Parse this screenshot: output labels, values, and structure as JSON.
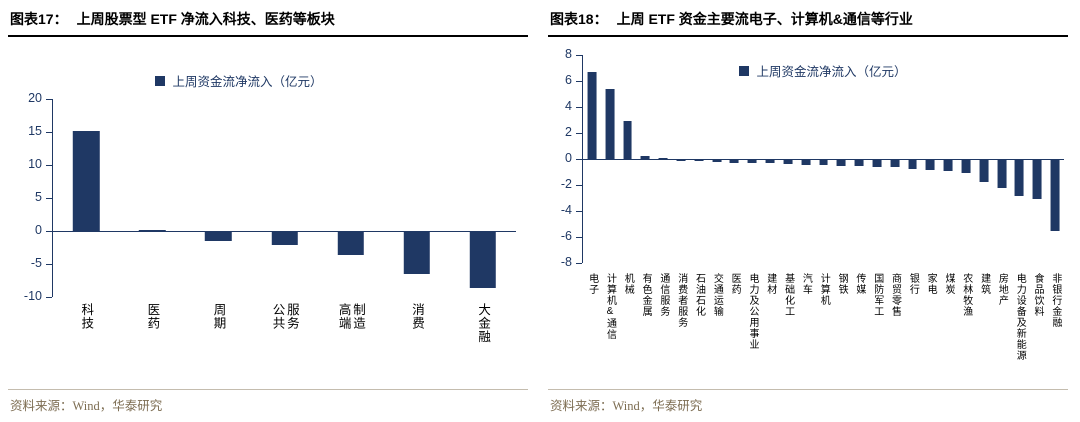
{
  "colors": {
    "navy": "#1f3864",
    "source_text": "#7d6d52",
    "rule": "#c4bcae",
    "title_text": "#000000"
  },
  "chart_data": [
    {
      "type": "bar",
      "fig_label": "图表17：",
      "title": "上周股票型 ETF 净流入科技、医药等板块",
      "legend": "上周资金流净流入（亿元）",
      "source": "资料来源：Wind，华泰研究",
      "ylim": [
        -10,
        20
      ],
      "ytick_step": 5,
      "grid": false,
      "legend_position": "top-center",
      "bar_color": "#1f3864",
      "categories": [
        "科技",
        "医药",
        "周期",
        "公共服务",
        "高端制造",
        "消费",
        "大金融"
      ],
      "values": [
        15.2,
        0.1,
        -1.5,
        -2.0,
        -3.5,
        -6.5,
        -8.5
      ]
    },
    {
      "type": "bar",
      "fig_label": "图表18：",
      "title": "上周 ETF 资金主要流电子、计算机&通信等行业",
      "legend": "上周资金流净流入（亿元）",
      "source": "资料来源：Wind，华泰研究",
      "ylim": [
        -8,
        8
      ],
      "ytick_step": 2,
      "grid": false,
      "legend_position": "top-center",
      "bar_color": "#1f3864",
      "categories": [
        "电子",
        "计算机&通信",
        "机械",
        "有色金属",
        "通信服务",
        "消费者服务",
        "石油石化",
        "交通运输",
        "医药",
        "电力及公用事业",
        "建材",
        "基础化工",
        "汽车",
        "计算机",
        "钢铁",
        "传媒",
        "国防军工",
        "商贸零售",
        "银行",
        "家电",
        "煤炭",
        "农林牧渔",
        "建筑",
        "房地产",
        "电力设备及新能源",
        "食品饮料",
        "非银行金融"
      ],
      "values": [
        6.7,
        5.4,
        2.9,
        0.2,
        0.1,
        -0.1,
        -0.15,
        -0.2,
        -0.25,
        -0.3,
        -0.3,
        -0.35,
        -0.4,
        -0.45,
        -0.5,
        -0.5,
        -0.55,
        -0.6,
        -0.7,
        -0.8,
        -0.9,
        -1.0,
        -1.7,
        -2.2,
        -2.8,
        -3.0,
        -5.5
      ]
    }
  ]
}
